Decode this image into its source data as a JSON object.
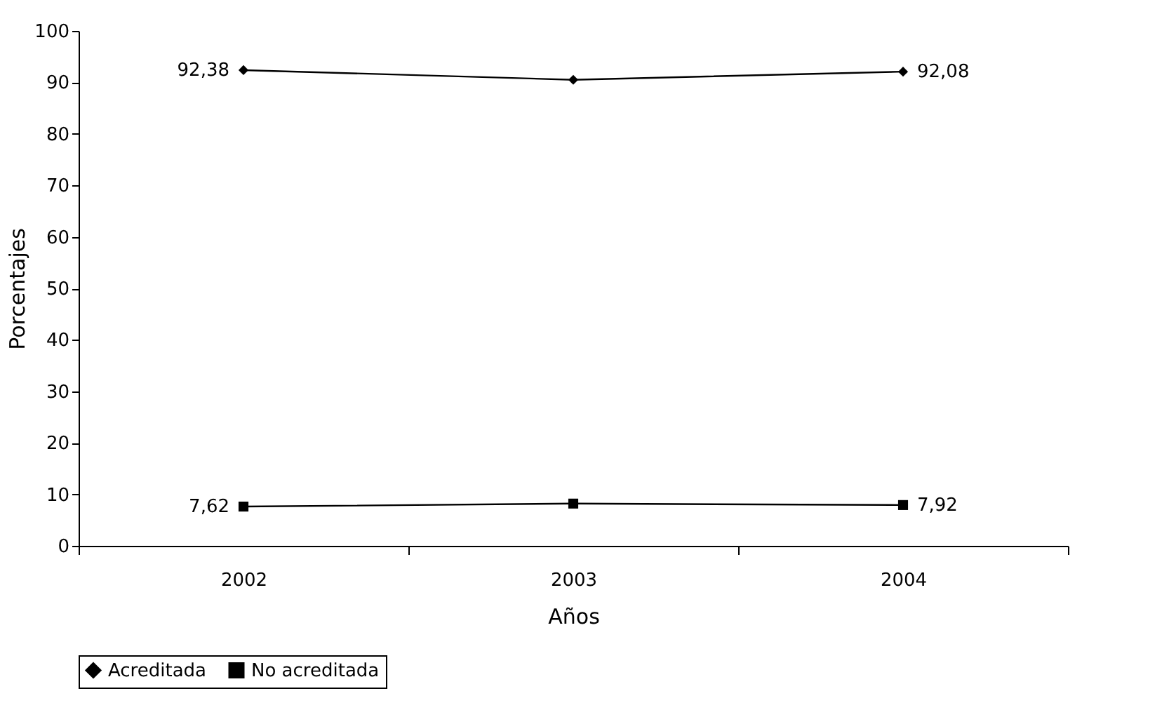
{
  "chart_data": {
    "type": "line",
    "xlabel": "Años",
    "ylabel": "Porcentajes",
    "categories": [
      "2002",
      "2003",
      "2004"
    ],
    "series": [
      {
        "name": "Acreditada",
        "color": "#000000",
        "marker": "diamond",
        "values": [
          92.38,
          90.5,
          92.08
        ],
        "value_labels": [
          "92,38",
          null,
          "92,08"
        ]
      },
      {
        "name": "No acreditada",
        "color": "#000000",
        "marker": "square",
        "values": [
          7.62,
          8.2,
          7.92
        ],
        "value_labels": [
          "7,62",
          null,
          "7,92"
        ]
      }
    ],
    "ylim": [
      0,
      100
    ],
    "yticks": [
      0,
      10,
      20,
      30,
      40,
      50,
      60,
      70,
      80,
      90,
      100
    ],
    "grid": false,
    "legend": "bottom"
  }
}
